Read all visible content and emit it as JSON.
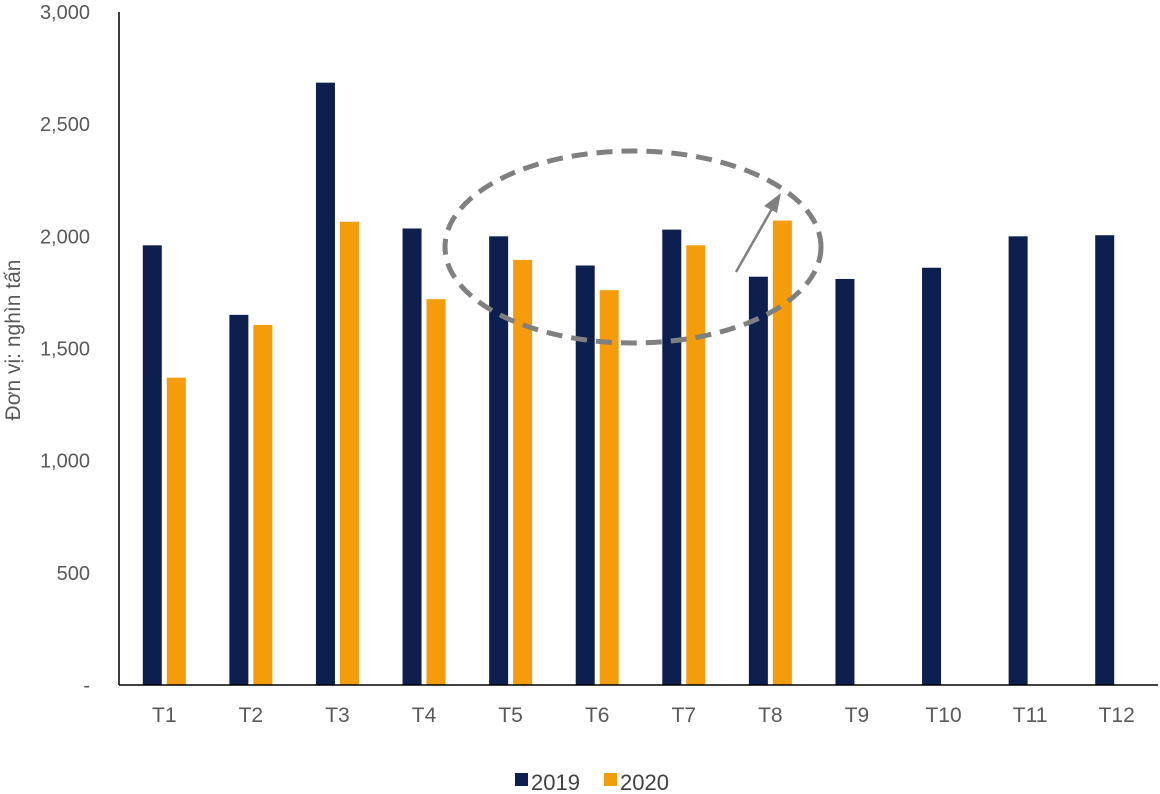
{
  "chart_data": {
    "type": "bar",
    "title": "",
    "xlabel": "",
    "ylabel": "Đơn vị: nghìn tấn",
    "categories": [
      "T1",
      "T2",
      "T3",
      "T4",
      "T5",
      "T6",
      "T7",
      "T8",
      "T9",
      "T10",
      "T11",
      "T12"
    ],
    "series": [
      {
        "name": "2019",
        "color": "#0d1f4f",
        "values": [
          1960,
          1650,
          2685,
          2035,
          2000,
          1870,
          2030,
          1820,
          1810,
          1860,
          2000,
          2005
        ]
      },
      {
        "name": "2020",
        "color": "#f59c0b",
        "values": [
          1370,
          1605,
          2065,
          1720,
          1895,
          1760,
          1960,
          2070,
          null,
          null,
          null,
          null
        ]
      }
    ],
    "ylim": [
      0,
      3000
    ],
    "yticks": [
      0,
      500,
      1000,
      1500,
      2000,
      2500,
      3000
    ],
    "ytick_labels": [
      "-",
      "500",
      "1,000",
      "1,500",
      "2,000",
      "2,500",
      "3,000"
    ],
    "grid": false,
    "legend_position": "bottom",
    "annotations": [
      {
        "type": "dashed-ellipse",
        "around_categories": [
          "T5",
          "T6",
          "T7",
          "T8"
        ],
        "color": "#808080"
      },
      {
        "type": "arrow",
        "direction": "up",
        "near_category": "T8",
        "color": "#808080"
      }
    ]
  }
}
